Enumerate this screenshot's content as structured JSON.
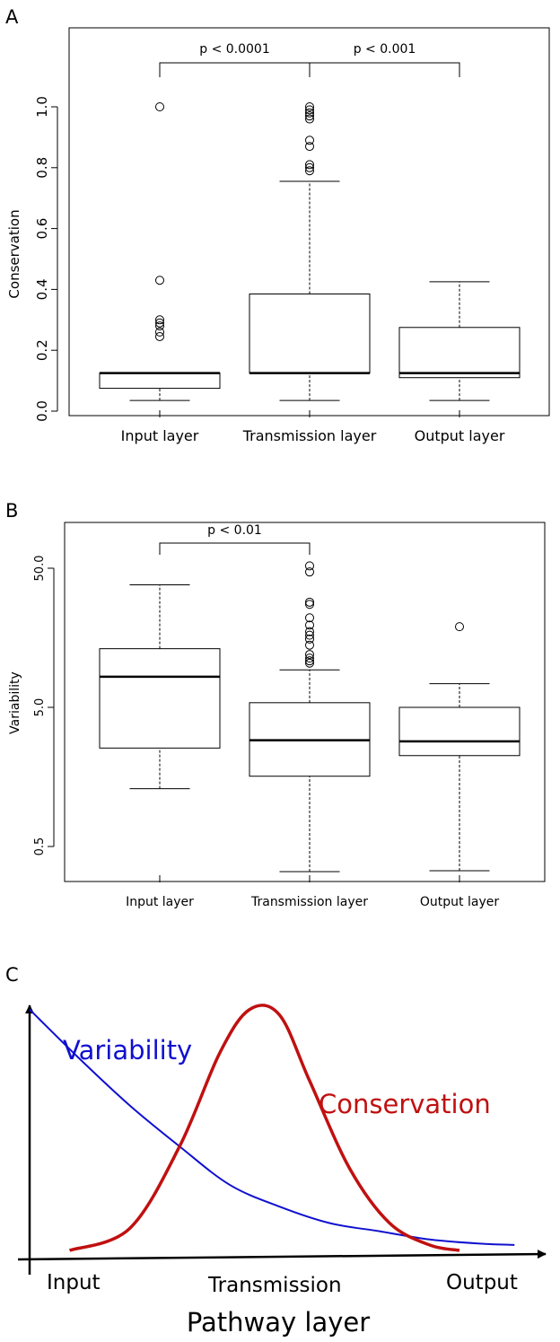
{
  "chart_data": [
    {
      "panel_label": "A",
      "type": "boxplot",
      "ylabel": "Conservation",
      "xlabel": "",
      "categories": [
        "Input layer",
        "Transmission layer",
        "Output layer"
      ],
      "yscale": "linear",
      "ylim": [
        -0.02,
        1.25
      ],
      "yticks": [
        0.0,
        0.2,
        0.4,
        0.6,
        0.8,
        1.0
      ],
      "ytick_labels": [
        "0.0",
        "0.2",
        "0.4",
        "0.6",
        "0.8",
        "1.0"
      ],
      "boxes": [
        {
          "whisker_low": 0.035,
          "q1": 0.075,
          "median": 0.125,
          "q3": 0.125,
          "whisker_high": 0.125,
          "outliers": [
            1.0,
            0.43,
            0.3,
            0.29,
            0.28,
            0.26,
            0.245
          ]
        },
        {
          "whisker_low": 0.035,
          "q1": 0.125,
          "median": 0.125,
          "q3": 0.385,
          "whisker_high": 0.755,
          "outliers": [
            0.79,
            0.8,
            0.81,
            0.87,
            0.89,
            0.96,
            0.97,
            0.98,
            0.99,
            1.0
          ]
        },
        {
          "whisker_low": 0.035,
          "q1": 0.11,
          "median": 0.125,
          "q3": 0.275,
          "whisker_high": 0.425,
          "outliers": []
        }
      ],
      "brackets": [
        {
          "from": 0,
          "to": 1,
          "label": "p < 0.0001"
        },
        {
          "from": 1,
          "to": 2,
          "label": "p < 0.001"
        }
      ]
    },
    {
      "panel_label": "B",
      "type": "boxplot",
      "ylabel": "Variability",
      "xlabel": "",
      "categories": [
        "Input layer",
        "Transmission layer",
        "Output layer"
      ],
      "yscale": "log",
      "ylim": [
        0.3,
        110
      ],
      "yticks": [
        0.5,
        5.0,
        50.0
      ],
      "ytick_labels": [
        "0.5",
        "5.0",
        "50.0"
      ],
      "boxes": [
        {
          "whisker_low": 1.3,
          "q1": 2.55,
          "median": 8.3,
          "q3": 13.2,
          "whisker_high": 38.0,
          "outliers": []
        },
        {
          "whisker_low": 0.33,
          "q1": 1.6,
          "median": 2.9,
          "q3": 5.4,
          "whisker_high": 9.3,
          "outliers": [
            10.4,
            10.8,
            11.3,
            12.0,
            14.0,
            15.5,
            16.5,
            17.5,
            19.5,
            22.0,
            27.5,
            28.5,
            47.0,
            52.0
          ]
        },
        {
          "whisker_low": 0.335,
          "q1": 2.25,
          "median": 2.85,
          "q3": 5.0,
          "whisker_high": 7.4,
          "outliers": [
            19.0
          ]
        }
      ],
      "brackets": [
        {
          "from": 0,
          "to": 1,
          "label": "p < 0.01"
        }
      ]
    },
    {
      "panel_label": "C",
      "type": "line",
      "xlabel": "Pathway layer",
      "ylabel": "",
      "x_tick_labels": [
        "Input",
        "Transmission",
        "Output"
      ],
      "xlim": [
        0,
        1
      ],
      "ylim": [
        0,
        1
      ],
      "series": [
        {
          "name": "Variability",
          "color": "#1010d0",
          "shape": "decaying curve",
          "x": [
            0.0,
            0.1,
            0.2,
            0.3,
            0.4,
            0.5,
            0.6,
            0.7,
            0.8,
            0.9,
            0.97
          ],
          "y": [
            0.88,
            0.7,
            0.53,
            0.38,
            0.24,
            0.16,
            0.1,
            0.07,
            0.04,
            0.025,
            0.02
          ]
        },
        {
          "name": "Conservation",
          "color": "#c01010",
          "shape": "bell curve",
          "x": [
            0.08,
            0.2,
            0.3,
            0.38,
            0.44,
            0.5,
            0.56,
            0.64,
            0.72,
            0.8,
            0.86
          ],
          "y": [
            0.0,
            0.08,
            0.38,
            0.72,
            0.88,
            0.86,
            0.62,
            0.3,
            0.1,
            0.02,
            0.0
          ]
        }
      ]
    }
  ]
}
